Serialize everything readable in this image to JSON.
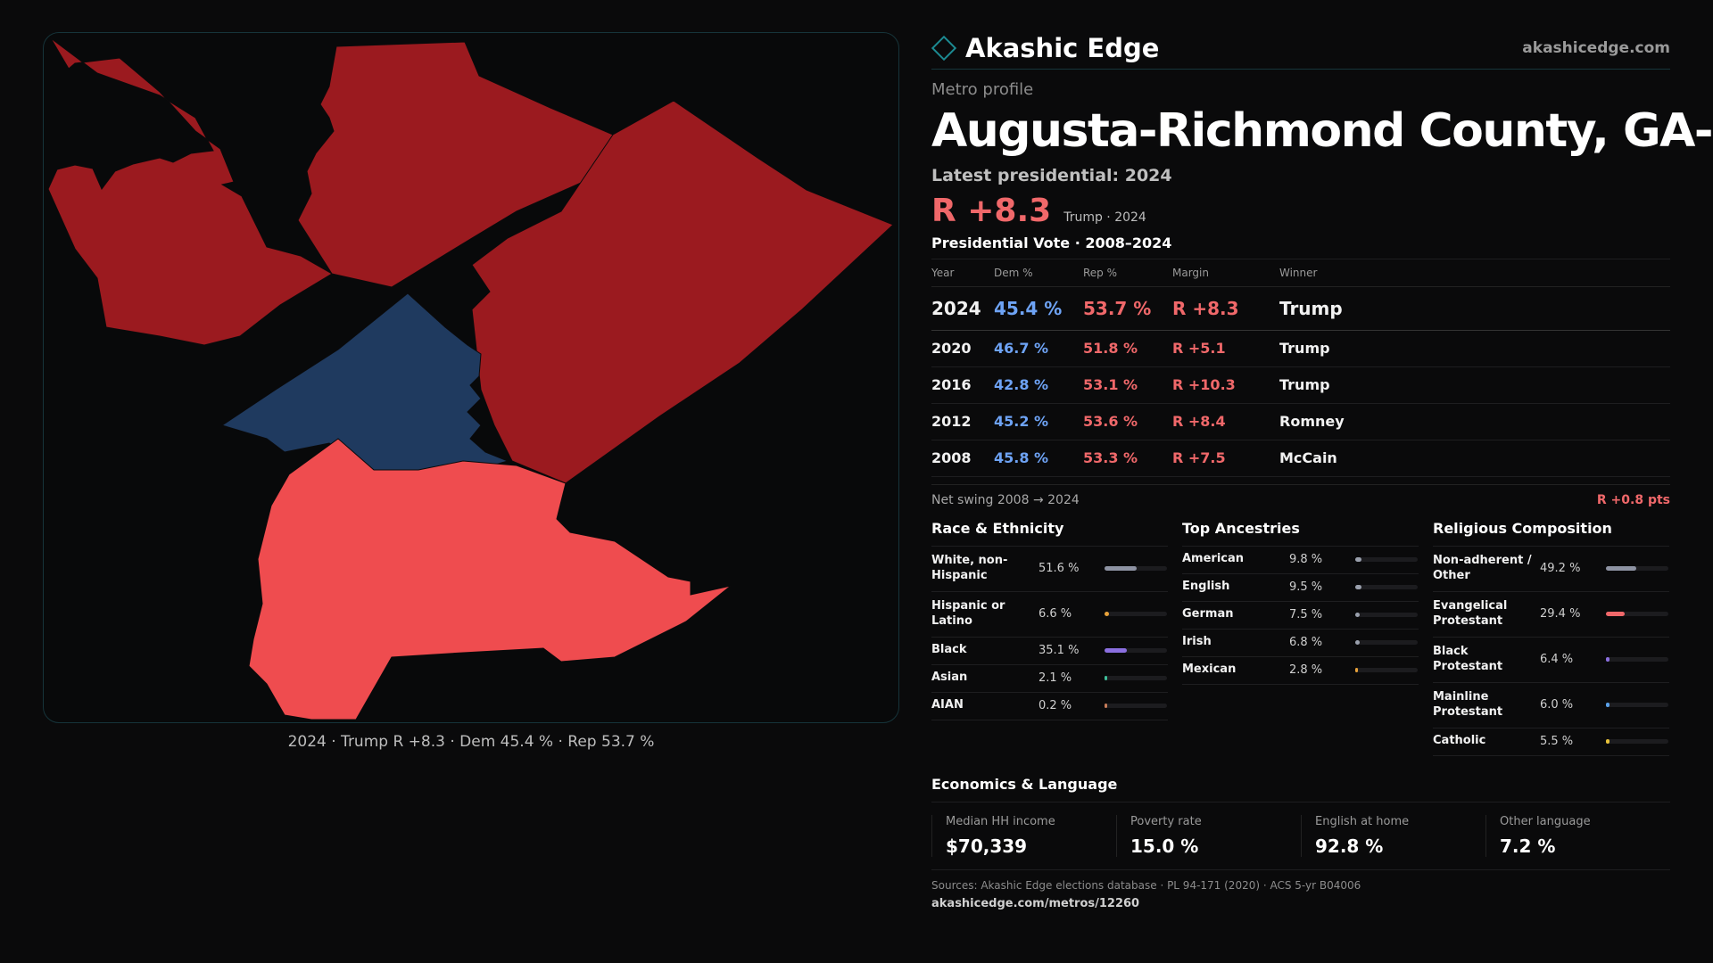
{
  "brand": {
    "name": "Akashic Edge",
    "url": "akashicedge.com"
  },
  "profile": {
    "eyebrow": "Metro profile",
    "title": "Augusta-Richmond County, GA-SC",
    "latest_label": "Latest presidential: 2024",
    "margin": "R +8.3",
    "margin_sub": "Trump · 2024"
  },
  "map": {
    "caption": "2024 · Trump R +8.3 · Dem 45.4 % · Rep 53.7 %",
    "colors": {
      "strong_rep": "#9b1a1f",
      "lean_rep": "#ef4c4f",
      "dem": "#1f3a5f"
    }
  },
  "votes": {
    "title": "Presidential Vote · 2008–2024",
    "headers": [
      "Year",
      "Dem %",
      "Rep %",
      "Margin",
      "Winner"
    ],
    "rows": [
      {
        "year": "2024",
        "dem": "45.4 %",
        "rep": "53.7 %",
        "margin": "R +8.3",
        "winner": "Trump"
      },
      {
        "year": "2020",
        "dem": "46.7 %",
        "rep": "51.8 %",
        "margin": "R +5.1",
        "winner": "Trump"
      },
      {
        "year": "2016",
        "dem": "42.8 %",
        "rep": "53.1 %",
        "margin": "R +10.3",
        "winner": "Trump"
      },
      {
        "year": "2012",
        "dem": "45.2 %",
        "rep": "53.6 %",
        "margin": "R +8.4",
        "winner": "Romney"
      },
      {
        "year": "2008",
        "dem": "45.8 %",
        "rep": "53.3 %",
        "margin": "R +7.5",
        "winner": "McCain"
      }
    ],
    "swing_label": "Net swing 2008 → 2024",
    "swing_value": "R +0.8 pts"
  },
  "race": {
    "title": "Race & Ethnicity",
    "items": [
      {
        "label": "White, non-Hispanic",
        "value": "51.6 %",
        "pct": 51.6,
        "color": "#8e93a3"
      },
      {
        "label": "Hispanic or Latino",
        "value": "6.6 %",
        "pct": 6.6,
        "color": "#e8a23a"
      },
      {
        "label": "Black",
        "value": "35.1 %",
        "pct": 35.1,
        "color": "#8b6fe0"
      },
      {
        "label": "Asian",
        "value": "2.1 %",
        "pct": 2.1,
        "color": "#3fbf9a"
      },
      {
        "label": "AIAN",
        "value": "0.2 %",
        "pct": 0.2,
        "color": "#c77d5a"
      }
    ]
  },
  "ancestry": {
    "title": "Top Ancestries",
    "items": [
      {
        "label": "American",
        "value": "9.8 %",
        "pct": 9.8,
        "color": "#9aa0ad"
      },
      {
        "label": "English",
        "value": "9.5 %",
        "pct": 9.5,
        "color": "#9aa0ad"
      },
      {
        "label": "German",
        "value": "7.5 %",
        "pct": 7.5,
        "color": "#9aa0ad"
      },
      {
        "label": "Irish",
        "value": "6.8 %",
        "pct": 6.8,
        "color": "#9aa0ad"
      },
      {
        "label": "Mexican",
        "value": "2.8 %",
        "pct": 2.8,
        "color": "#e8a23a"
      }
    ]
  },
  "religion": {
    "title": "Religious Composition",
    "items": [
      {
        "label": "Non-adherent / Other",
        "value": "49.2 %",
        "pct": 49.2,
        "color": "#8e93a3"
      },
      {
        "label": "Evangelical Protestant",
        "value": "29.4 %",
        "pct": 29.4,
        "color": "#f0686a"
      },
      {
        "label": "Black Protestant",
        "value": "6.4 %",
        "pct": 6.4,
        "color": "#8b6fe0"
      },
      {
        "label": "Mainline Protestant",
        "value": "6.0 %",
        "pct": 6.0,
        "color": "#5aa0e8"
      },
      {
        "label": "Catholic",
        "value": "5.5 %",
        "pct": 5.5,
        "color": "#e8c23a"
      }
    ]
  },
  "economics": {
    "title": "Economics & Language",
    "cards": [
      {
        "label": "Median HH income",
        "value": "$70,339"
      },
      {
        "label": "Poverty rate",
        "value": "15.0 %"
      },
      {
        "label": "English at home",
        "value": "92.8 %"
      },
      {
        "label": "Other language",
        "value": "7.2 %"
      }
    ]
  },
  "sources": {
    "text": "Sources: Akashic Edge elections database · PL 94-171 (2020) · ACS 5-yr B04006",
    "url": "akashicedge.com/metros/12260"
  }
}
